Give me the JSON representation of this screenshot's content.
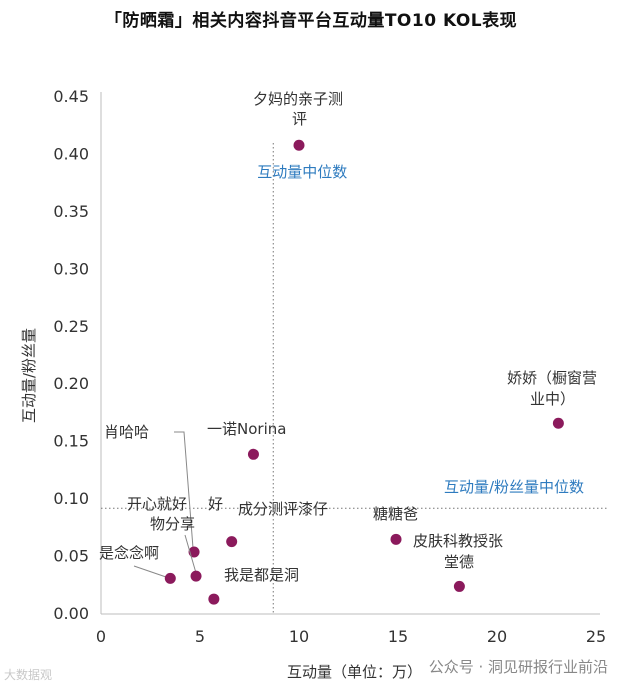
{
  "chart_data": {
    "type": "scatter",
    "title": "「防晒霜」相关内容抖音平台互动量TO10  KOL表现",
    "xlabel": "互动量（单位：万）",
    "ylabel": "互动量/粉丝量",
    "xlim": [
      0,
      25
    ],
    "ylim": [
      0,
      0.45
    ],
    "x_ticks": [
      "0",
      "5",
      "10",
      "15",
      "20",
      "25"
    ],
    "y_ticks": [
      "0.00",
      "0.05",
      "0.10",
      "0.15",
      "0.20",
      "0.25",
      "0.30",
      "0.35",
      "0.40",
      "0.45"
    ],
    "point_color": "#8b1a5c",
    "median_x": 8.7,
    "median_y": 0.092,
    "median_x_label": "互动量中位数",
    "median_y_label": "互动量/粉丝量中位数",
    "points": [
      {
        "name": "夕妈的亲子测评",
        "label_lines": [
          "夕妈的亲子测",
          "评"
        ],
        "x": 10.0,
        "y": 0.408
      },
      {
        "name": "娇娇（橱窗营业中）",
        "label_lines": [
          "娇娇（橱窗营",
          "业中）"
        ],
        "x": 23.1,
        "y": 0.166
      },
      {
        "name": "一诺Norina",
        "label_lines": [
          "一诺Norina"
        ],
        "x": 7.7,
        "y": 0.139
      },
      {
        "name": "糖糖爸",
        "label_lines": [
          "糖糖爸"
        ],
        "x": 14.9,
        "y": 0.065
      },
      {
        "name": "成分测评漆仔",
        "label_lines": [
          "成分测评漆仔"
        ],
        "x": 6.6,
        "y": 0.063
      },
      {
        "name": "皮肤科教授张堂德",
        "label_lines": [
          "皮肤科教授张",
          "堂德"
        ],
        "x": 18.1,
        "y": 0.024
      },
      {
        "name": "肖哈哈",
        "label_lines": [
          "肖哈哈"
        ],
        "x": 4.7,
        "y": 0.054
      },
      {
        "name": "开心就好好物分享",
        "label_lines": [
          "开心就好",
          "物分享"
        ],
        "x": 4.8,
        "y": 0.033
      },
      {
        "name": "是念念啊",
        "label_lines": [
          "是念念啊"
        ],
        "x": 3.5,
        "y": 0.031
      },
      {
        "name": "我是都是洞",
        "label_lines": [
          "我是都是洞"
        ],
        "x": 5.7,
        "y": 0.013
      }
    ],
    "extra_labels": [
      {
        "text": "好"
      }
    ]
  },
  "footer": {
    "left": "大数据观",
    "right": "公众号 · 洞见研报行业前沿"
  },
  "colors": {
    "median_label": "#2e7bbf",
    "axis_text": "#333333",
    "guide_line": "#777777"
  }
}
